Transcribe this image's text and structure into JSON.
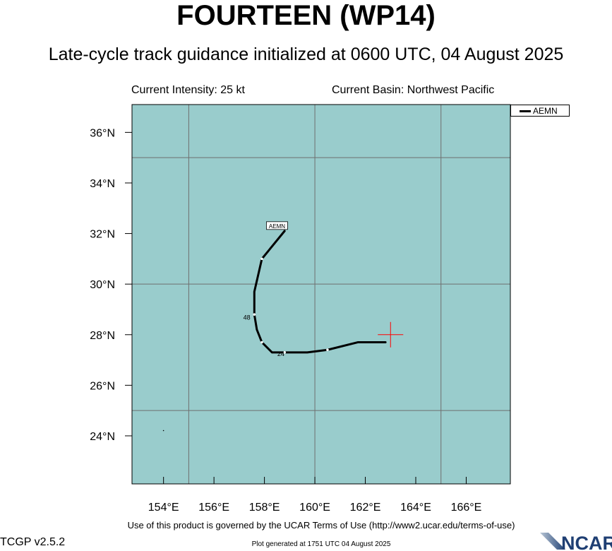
{
  "header": {
    "title": "FOURTEEN (WP14)",
    "subtitle": "Late-cycle track guidance initialized at 0600 UTC, 04 August 2025"
  },
  "info": {
    "intensity": "Current Intensity: 25 kt",
    "basin": "Current Basin: Northwest Pacific"
  },
  "map": {
    "background_color": "#99cccc",
    "lon_range": [
      152.75,
      167.75
    ],
    "lat_range": [
      22.1,
      37.1
    ],
    "lon_ticks": [
      "154°E",
      "156°E",
      "158°E",
      "160°E",
      "162°E",
      "164°E",
      "166°E"
    ],
    "lat_ticks": [
      "24°N",
      "26°N",
      "28°N",
      "30°N",
      "32°N",
      "34°N",
      "36°N"
    ],
    "current_position": {
      "lon": 163.0,
      "lat": 28.0,
      "marker_color": "#ff0000"
    }
  },
  "legend": {
    "entries": [
      {
        "name": "AEMN",
        "color": "#000000"
      }
    ]
  },
  "tracks": [
    {
      "model": "AEMN",
      "color": "#000000",
      "points": [
        {
          "lon": 162.8,
          "lat": 27.7
        },
        {
          "lon": 161.7,
          "lat": 27.7
        },
        {
          "lon": 160.5,
          "lat": 27.4
        },
        {
          "lon": 159.7,
          "lat": 27.3
        },
        {
          "lon": 158.8,
          "lat": 27.3
        },
        {
          "lon": 158.3,
          "lat": 27.3
        },
        {
          "lon": 157.9,
          "lat": 27.7
        },
        {
          "lon": 157.7,
          "lat": 28.2
        },
        {
          "lon": 157.6,
          "lat": 28.8
        },
        {
          "lon": 157.6,
          "lat": 29.7
        },
        {
          "lon": 157.9,
          "lat": 31.0
        },
        {
          "lon": 158.8,
          "lat": 32.1
        }
      ],
      "markers": [
        {
          "lon": 160.5,
          "lat": 27.4
        },
        {
          "lon": 158.8,
          "lat": 27.3
        },
        {
          "lon": 157.9,
          "lat": 27.7
        },
        {
          "lon": 157.6,
          "lat": 28.8
        },
        {
          "lon": 157.9,
          "lat": 31.0
        }
      ],
      "hour_labels": [
        {
          "text": "24",
          "lon": 158.65,
          "lat": 27.15
        },
        {
          "text": "48",
          "lon": 157.3,
          "lat": 28.6
        }
      ],
      "end_label": {
        "text": "AEMN",
        "lon": 158.5,
        "lat": 32.3
      }
    }
  ],
  "footer": {
    "terms": "Use of this product is governed by the UCAR Terms of Use (http://www2.ucar.edu/terms-of-use)",
    "version": "TCGP v2.5.2",
    "generated": "Plot generated at 1751 UTC   04 August 2025",
    "logo_text": "NCAR"
  }
}
